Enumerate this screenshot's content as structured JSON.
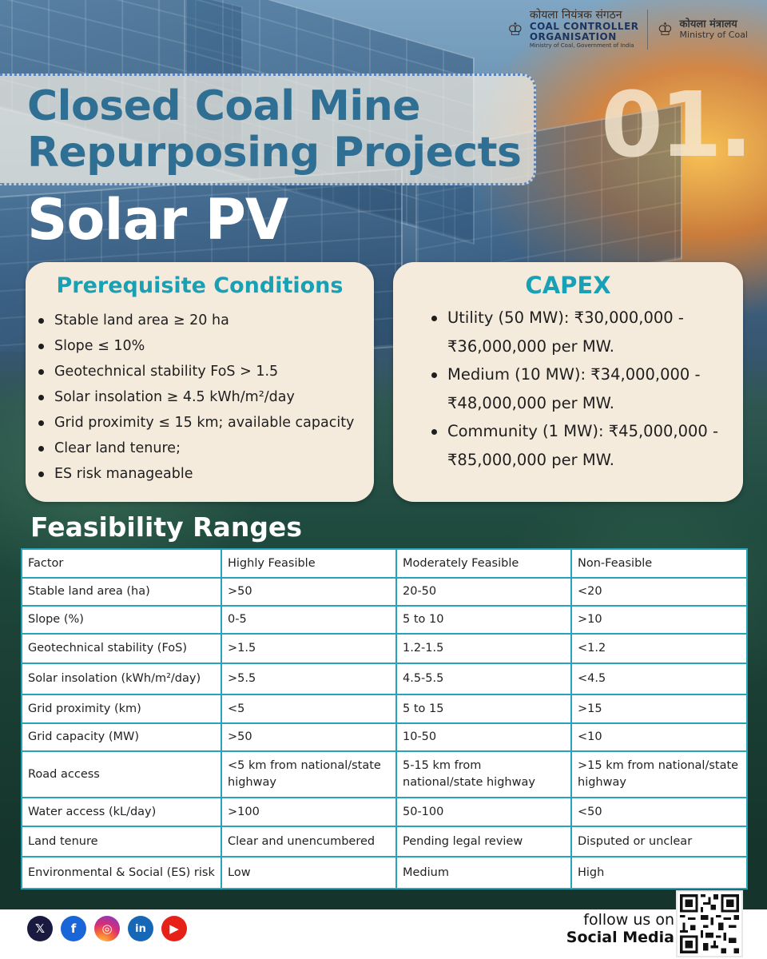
{
  "header": {
    "org_hindi": "कोयला नियंत्रक संगठन",
    "org_name_line1": "COAL CONTROLLER",
    "org_name_line2": "ORGANISATION",
    "org_sub": "Ministry of Coal, Government of India",
    "ministry_hindi": "कोयला मंत्रालय",
    "ministry_name": "Ministry of Coal"
  },
  "hero": {
    "title_line1": "Closed Coal Mine",
    "title_line2": "Repurposing Projects",
    "number": "01.",
    "subtitle": "Solar PV"
  },
  "prerequisites": {
    "title": "Prerequisite Conditions",
    "items": [
      "Stable land area ≥ 20 ha",
      "Slope ≤ 10%",
      "Geotechnical stability FoS > 1.5",
      "Solar insolation ≥ 4.5 kWh/m²/day",
      "Grid proximity ≤ 15 km; available capacity",
      "Clear land tenure;",
      "ES risk manageable"
    ]
  },
  "capex": {
    "title": "CAPEX",
    "items": [
      "Utility (50 MW): ₹30,000,000 - ₹36,000,000 per MW.",
      "Medium (10 MW): ₹34,000,000 - ₹48,000,000 per MW.",
      "Community (1 MW): ₹45,000,000 - ₹85,000,000 per MW."
    ]
  },
  "feasibility": {
    "title": "Feasibility Ranges",
    "header": [
      "Factor",
      "Highly Feasible",
      "Moderately Feasible",
      "Non-Feasible"
    ],
    "rows": [
      [
        "Stable land area (ha)",
        ">50",
        "20-50",
        "<20"
      ],
      [
        "Slope (%)",
        "0-5",
        "5 to 10",
        ">10"
      ],
      [
        "Geotechnical stability (FoS)",
        ">1.5",
        "1.2-1.5",
        "<1.2"
      ],
      [
        "Solar insolation (kWh/m²/day)",
        ">5.5",
        "4.5-5.5",
        "<4.5"
      ],
      [
        "Grid proximity (km)",
        "<5",
        "5 to 15",
        ">15"
      ],
      [
        "Grid capacity (MW)",
        ">50",
        "10-50",
        "<10"
      ],
      [
        "Road access",
        "<5 km from national/state highway",
        "5-15 km from national/state highway",
        ">15 km from national/state highway"
      ],
      [
        "Water access (kL/day)",
        ">100",
        "50-100",
        "<50"
      ],
      [
        "Land tenure",
        "Clear and unencumbered",
        "Pending legal review",
        "Disputed or unclear"
      ],
      [
        "Environmental & Social (ES) risk",
        "Low",
        "Medium",
        "High"
      ]
    ]
  },
  "footer": {
    "social": [
      {
        "name": "x-icon",
        "glyph": "𝕏"
      },
      {
        "name": "facebook-icon",
        "glyph": "f"
      },
      {
        "name": "instagram-icon",
        "glyph": "◎"
      },
      {
        "name": "linkedin-icon",
        "glyph": "in"
      },
      {
        "name": "youtube-icon",
        "glyph": "▶"
      }
    ],
    "follow_line1": "follow us on",
    "follow_line2": "Social Media"
  }
}
